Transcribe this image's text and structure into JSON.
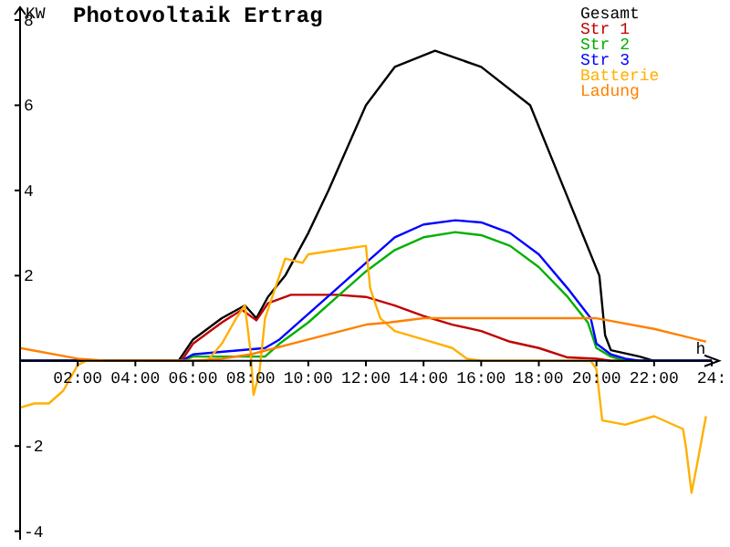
{
  "chart_data": {
    "type": "line",
    "title": "Photovoltaik Ertrag",
    "xlabel": "h",
    "ylabel": "KW",
    "xlim": [
      0,
      24
    ],
    "ylim": [
      -4.2,
      8.3
    ],
    "xticks": [
      {
        "value": 2,
        "label": "02:00"
      },
      {
        "value": 4,
        "label": "04:00"
      },
      {
        "value": 6,
        "label": "06:00"
      },
      {
        "value": 8,
        "label": "08:00"
      },
      {
        "value": 10,
        "label": "10:00"
      },
      {
        "value": 12,
        "label": "12:00"
      },
      {
        "value": 14,
        "label": "14:00"
      },
      {
        "value": 16,
        "label": "16:00"
      },
      {
        "value": 18,
        "label": "18:00"
      },
      {
        "value": 20,
        "label": "20:00"
      },
      {
        "value": 22,
        "label": "22:00"
      },
      {
        "value": 24,
        "label": "24:"
      }
    ],
    "yticks": [
      -4,
      -2,
      2,
      4,
      6,
      8
    ],
    "grid": false,
    "legend": "top right",
    "line_style": "solid",
    "series": [
      {
        "name": "Gesamt",
        "color": "#000000",
        "x": [
          0,
          5.5,
          6,
          7,
          7.8,
          8.2,
          8.6,
          9.2,
          10,
          10.7,
          12,
          13,
          14.4,
          16,
          17.7,
          18.9,
          20.1,
          20.3,
          20.5,
          21.5,
          22,
          24
        ],
        "values": [
          0,
          0,
          0.5,
          1.0,
          1.3,
          1.0,
          1.5,
          2,
          3.0,
          4,
          6,
          6.9,
          7.28,
          6.9,
          6,
          4,
          2,
          0.6,
          0.25,
          0.1,
          0,
          0
        ]
      },
      {
        "name": "Str 1",
        "color": "#c00000",
        "x": [
          0,
          5.6,
          6,
          7,
          7.7,
          8.2,
          8.6,
          9.4,
          10,
          11,
          12,
          13,
          14,
          15,
          16,
          17,
          18,
          19,
          20,
          20.5,
          24
        ],
        "values": [
          0,
          0,
          0.4,
          0.9,
          1.2,
          0.95,
          1.35,
          1.55,
          1.55,
          1.55,
          1.5,
          1.3,
          1.05,
          0.85,
          0.7,
          0.45,
          0.3,
          0.08,
          0.05,
          0,
          0
        ]
      },
      {
        "name": "Str 2",
        "color": "#00b000",
        "x": [
          0,
          5.6,
          6,
          8.5,
          9,
          10,
          11,
          12,
          13,
          14,
          15.1,
          16,
          17,
          18,
          19,
          19.7,
          20,
          20.5,
          21,
          24
        ],
        "values": [
          0,
          0,
          0.1,
          0.1,
          0.4,
          0.9,
          1.5,
          2.1,
          2.6,
          2.9,
          3.02,
          2.95,
          2.7,
          2.2,
          1.5,
          0.9,
          0.3,
          0.1,
          0,
          0
        ]
      },
      {
        "name": "Str 3",
        "color": "#0000ff",
        "x": [
          0,
          5.6,
          6,
          8.5,
          9,
          10,
          11,
          12,
          13,
          14,
          15.1,
          16,
          17,
          18,
          19,
          19.8,
          20,
          20.5,
          21,
          21.5,
          24
        ],
        "values": [
          0,
          0,
          0.15,
          0.3,
          0.5,
          1.1,
          1.7,
          2.3,
          2.9,
          3.2,
          3.3,
          3.25,
          3.0,
          2.5,
          1.7,
          1.0,
          0.4,
          0.15,
          0.05,
          0,
          0
        ]
      },
      {
        "name": "Batterie",
        "color": "#ffb000",
        "x": [
          0,
          0.5,
          1,
          1.5,
          2,
          2.3,
          6.5,
          7,
          7.5,
          7.8,
          8,
          8.1,
          8.3,
          8.5,
          9,
          9.2,
          9.8,
          10,
          11,
          12,
          12.15,
          12.5,
          13,
          14,
          15,
          15.5,
          16,
          19.8,
          20,
          20.2,
          21,
          22,
          23,
          23.1,
          23.3,
          23.5,
          23.8
        ],
        "values": [
          -1.1,
          -1.0,
          -1.0,
          -0.7,
          -0.1,
          0,
          0,
          0.4,
          1.0,
          1.3,
          0.2,
          -0.8,
          -0.3,
          1.0,
          2.0,
          2.4,
          2.3,
          2.5,
          2.6,
          2.7,
          1.7,
          1.0,
          0.7,
          0.5,
          0.3,
          0.05,
          0,
          0,
          -0.2,
          -1.4,
          -1.5,
          -1.3,
          -1.6,
          -2.0,
          -3.1,
          -2.4,
          -1.3
        ]
      },
      {
        "name": "Ladung",
        "color": "#ff8000",
        "x": [
          0,
          2,
          3,
          6,
          7,
          8,
          10,
          12,
          12.8,
          14,
          20,
          22,
          23.8
        ],
        "values": [
          0.3,
          0.05,
          0,
          0,
          0.05,
          0.15,
          0.5,
          0.85,
          0.9,
          1.0,
          1.0,
          0.75,
          0.45
        ]
      }
    ]
  }
}
